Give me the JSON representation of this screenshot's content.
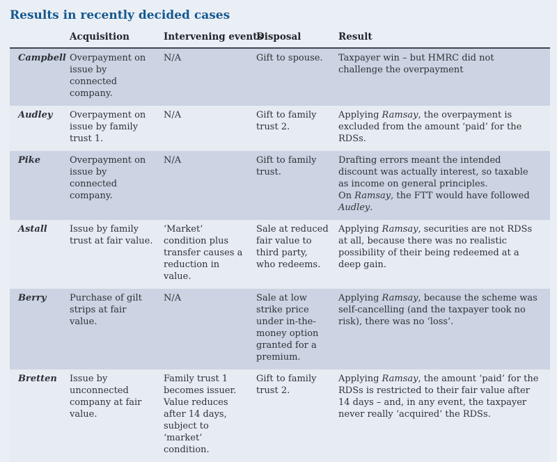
{
  "title": "Results in recently decided cases",
  "colors": {
    "page_bg": "#eaeff6",
    "row_shaded": "#ccd3e2",
    "row_light": "#e7ebf2",
    "title_blue": "#15588f",
    "header_rule": "#41454d",
    "text": "#2e3138"
  },
  "table": {
    "headers": [
      "",
      "Acquisition",
      "Intervening events",
      "Disposal",
      "Result"
    ],
    "rows": [
      {
        "case": "Campbell",
        "acquisition": "Overpayment on issue by connected company.",
        "intervening": "N/A",
        "disposal": "Gift to spouse.",
        "result": [
          [
            {
              "t": "Taxpayer win – but HMRC did not challenge the overpayment"
            }
          ]
        ]
      },
      {
        "case": "Audley",
        "acquisition": "Overpayment on issue by family trust 1.",
        "intervening": "N/A",
        "disposal": "Gift to family trust 2.",
        "result": [
          [
            {
              "t": "Applying "
            },
            {
              "t": "Ramsay",
              "i": true
            },
            {
              "t": ", the overpayment is excluded from the amount ‘paid’ for the RDSs."
            }
          ]
        ]
      },
      {
        "case": "Pike",
        "acquisition": "Overpayment on issue by connected company.",
        "intervening": "N/A",
        "disposal": "Gift to family trust.",
        "result": [
          [
            {
              "t": "Drafting errors meant the intended discount was actually interest, so taxable as income on general principles."
            }
          ],
          [
            {
              "t": "On "
            },
            {
              "t": "Ramsay",
              "i": true
            },
            {
              "t": ", the FTT would have followed "
            },
            {
              "t": "Audley",
              "i": true
            },
            {
              "t": "."
            }
          ]
        ]
      },
      {
        "case": "Astall",
        "acquisition": "Issue by family trust at fair value.",
        "intervening": "‘Market’ condition plus transfer causes a reduction in value.",
        "disposal": "Sale at reduced fair value to third party, who redeems.",
        "result": [
          [
            {
              "t": "Applying "
            },
            {
              "t": "Ramsay",
              "i": true
            },
            {
              "t": ", securities are not RDSs at all, because there was no realistic possibility of their being redeemed at a deep gain."
            }
          ]
        ]
      },
      {
        "case": "Berry",
        "acquisition": "Purchase of gilt strips at fair value.",
        "intervening": "N/A",
        "disposal": "Sale at low strike price under in-the-money option granted for a premium.",
        "result": [
          [
            {
              "t": "Applying "
            },
            {
              "t": "Ramsay",
              "i": true
            },
            {
              "t": ", because the scheme was self-cancelling (and the taxpayer took no risk), there was no ‘loss’."
            }
          ]
        ]
      },
      {
        "case": "Bretten",
        "acquisition": "Issue by unconnected company at fair value.",
        "intervening": "Family trust 1 becomes issuer. Value reduces after 14 days, subject to ‘market’ condition.",
        "disposal": "Gift to family trust 2.",
        "result": [
          [
            {
              "t": "Applying "
            },
            {
              "t": "Ramsay",
              "i": true
            },
            {
              "t": ", the amount ‘paid’ for the RDSs is restricted to their fair value after 14 days – and, in any event, the taxpayer never really ‘acquired’ the RDSs."
            }
          ]
        ]
      }
    ]
  }
}
